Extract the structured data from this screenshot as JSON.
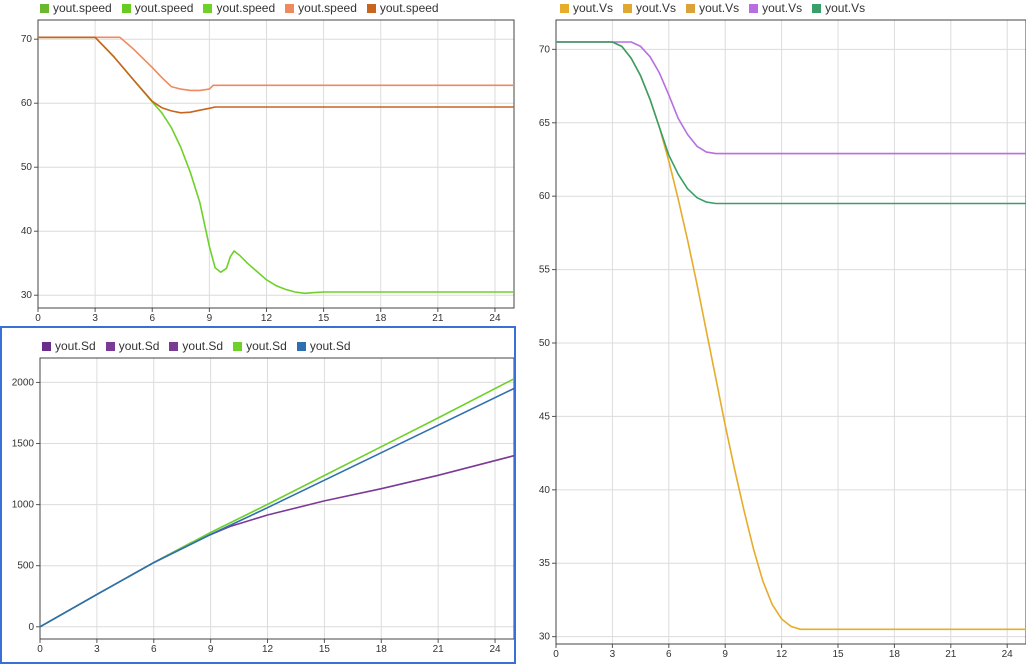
{
  "chart_data": [
    {
      "id": "speed",
      "type": "line",
      "title": "",
      "xlabel": "",
      "ylabel": "",
      "xlim": [
        0,
        25
      ],
      "ylim": [
        28,
        73
      ],
      "xticks": [
        0,
        3,
        6,
        9,
        12,
        15,
        18,
        21,
        24
      ],
      "yticks": [
        30,
        40,
        50,
        60,
        70
      ],
      "grid": true,
      "legend_position": "top",
      "series": [
        {
          "name": "yout.speed",
          "color": "#6ab82d",
          "legend_only": true,
          "x": [],
          "y": []
        },
        {
          "name": "yout.speed",
          "color": "#66cc22",
          "legend_only": true,
          "x": [],
          "y": []
        },
        {
          "name": "yout.speed",
          "color": "#6ed12a",
          "x": [
            0,
            3,
            4,
            5,
            6,
            6.5,
            7,
            7.5,
            8,
            8.5,
            9,
            9.3,
            9.6,
            9.9,
            10.1,
            10.3,
            10.6,
            11,
            11.5,
            12,
            12.5,
            13,
            13.5,
            14,
            14.5,
            15,
            18,
            21,
            25
          ],
          "y": [
            70.3,
            70.3,
            67.2,
            63.7,
            60.2,
            58.5,
            56.2,
            53.1,
            49.2,
            44.5,
            37.6,
            34.3,
            33.6,
            34.2,
            36.0,
            36.9,
            36.2,
            35.0,
            33.7,
            32.4,
            31.5,
            30.9,
            30.5,
            30.3,
            30.4,
            30.5,
            30.5,
            30.5,
            30.5
          ]
        },
        {
          "name": "yout.speed",
          "color": "#ef8a5f",
          "x": [
            0,
            3,
            4.3,
            5,
            6,
            6.5,
            7,
            7.5,
            8,
            8.5,
            9,
            9.2,
            9.5,
            12,
            15,
            18,
            21,
            25
          ],
          "y": [
            70.3,
            70.3,
            70.3,
            68.5,
            65.6,
            64.0,
            62.6,
            62.2,
            62.0,
            62.0,
            62.2,
            62.8,
            62.8,
            62.8,
            62.8,
            62.8,
            62.8,
            62.8
          ]
        },
        {
          "name": "yout.speed",
          "color": "#c8641e",
          "x": [
            0,
            3,
            4,
            5,
            6,
            6.5,
            7,
            7.5,
            8,
            8.5,
            9,
            9.3,
            9.7,
            12,
            15,
            18,
            21,
            25
          ],
          "y": [
            70.3,
            70.3,
            67.2,
            63.7,
            60.3,
            59.3,
            58.8,
            58.5,
            58.6,
            58.9,
            59.2,
            59.4,
            59.4,
            59.4,
            59.4,
            59.4,
            59.4,
            59.4
          ]
        }
      ]
    },
    {
      "id": "sd",
      "type": "line",
      "title": "",
      "xlabel": "",
      "ylabel": "",
      "xlim": [
        0,
        25
      ],
      "ylim": [
        -100,
        2200
      ],
      "xticks": [
        0,
        3,
        6,
        9,
        12,
        15,
        18,
        21,
        24
      ],
      "yticks": [
        0,
        500,
        1000,
        1500,
        2000
      ],
      "grid": true,
      "legend_position": "top",
      "series": [
        {
          "name": "yout.Sd",
          "color": "#6a2d8a",
          "legend_only": true,
          "x": [],
          "y": []
        },
        {
          "name": "yout.Sd",
          "color": "#7b3a96",
          "x": [
            0,
            3,
            6,
            8,
            10,
            12,
            15,
            18,
            21,
            25
          ],
          "y": [
            0,
            265,
            525,
            690,
            820,
            915,
            1030,
            1130,
            1240,
            1400
          ]
        },
        {
          "name": "yout.Sd",
          "color": "#7a3c92",
          "legend_only": true,
          "x": [],
          "y": []
        },
        {
          "name": "yout.Sd",
          "color": "#6ed12a",
          "x": [
            0,
            3,
            6,
            9,
            12,
            15,
            18,
            21,
            25
          ],
          "y": [
            0,
            265,
            525,
            772,
            1002,
            1238,
            1474,
            1710,
            2030
          ]
        },
        {
          "name": "yout.Sd",
          "color": "#2d6fb0",
          "x": [
            0,
            3,
            6,
            9,
            12,
            15,
            18,
            21,
            25
          ],
          "y": [
            0,
            265,
            525,
            755,
            975,
            1200,
            1425,
            1650,
            1950
          ]
        }
      ]
    },
    {
      "id": "vs",
      "type": "line",
      "title": "",
      "xlabel": "",
      "ylabel": "",
      "xlim": [
        0,
        25
      ],
      "ylim": [
        29.5,
        72
      ],
      "xticks": [
        0,
        3,
        6,
        9,
        12,
        15,
        18,
        21,
        24
      ],
      "yticks": [
        30,
        35,
        40,
        45,
        50,
        55,
        60,
        65,
        70
      ],
      "grid": true,
      "legend_position": "top",
      "series": [
        {
          "name": "yout.Vs",
          "color": "#e6ac2a",
          "x": [
            0,
            3,
            3.5,
            4,
            4.5,
            5,
            5.5,
            6,
            6.5,
            7,
            7.5,
            8,
            8.5,
            9,
            9.5,
            10,
            10.5,
            11,
            11.5,
            12,
            12.5,
            13,
            13.5,
            14,
            14.5,
            15,
            18,
            21,
            25
          ],
          "y": [
            70.5,
            70.5,
            70.2,
            69.4,
            68.2,
            66.6,
            64.7,
            62.4,
            59.8,
            57.0,
            54.0,
            50.8,
            47.6,
            44.4,
            41.4,
            38.6,
            36.0,
            33.8,
            32.2,
            31.2,
            30.7,
            30.5,
            30.5,
            30.5,
            30.5,
            30.5,
            30.5,
            30.5,
            30.5
          ]
        },
        {
          "name": "yout.Vs",
          "color": "#e0a830",
          "legend_only": true,
          "x": [],
          "y": []
        },
        {
          "name": "yout.Vs",
          "color": "#dba23a",
          "legend_only": true,
          "x": [],
          "y": []
        },
        {
          "name": "yout.Vs",
          "color": "#b86ee0",
          "x": [
            0,
            3,
            4,
            4.5,
            5,
            5.5,
            6,
            6.5,
            7,
            7.5,
            8,
            8.5,
            9,
            12,
            15,
            18,
            21,
            25
          ],
          "y": [
            70.5,
            70.5,
            70.5,
            70.2,
            69.5,
            68.4,
            66.9,
            65.3,
            64.2,
            63.4,
            63.0,
            62.9,
            62.9,
            62.9,
            62.9,
            62.9,
            62.9,
            62.9
          ]
        },
        {
          "name": "yout.Vs",
          "color": "#3a9e6a",
          "x": [
            0,
            3,
            3.5,
            4,
            4.5,
            5,
            5.5,
            6,
            6.5,
            7,
            7.5,
            8,
            8.5,
            9,
            12,
            15,
            18,
            21,
            25
          ],
          "y": [
            70.5,
            70.5,
            70.2,
            69.4,
            68.2,
            66.6,
            64.7,
            62.8,
            61.5,
            60.5,
            59.9,
            59.6,
            59.5,
            59.5,
            59.5,
            59.5,
            59.5,
            59.5,
            59.5
          ]
        }
      ]
    }
  ]
}
